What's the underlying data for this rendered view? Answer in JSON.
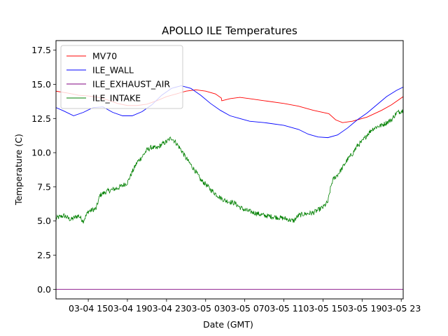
{
  "chart_data": {
    "type": "line",
    "title": "APOLLO ILE Temperatures",
    "xlabel": "Date (GMT)",
    "ylabel": "Temperature (C)",
    "x_unit": "hours since 03-04 00:00 GMT",
    "xlim": [
      11.7,
      47.2
    ],
    "ylim": [
      -0.7,
      18.2
    ],
    "x_ticks": [
      {
        "value": 15,
        "label": "03-04 15"
      },
      {
        "value": 19,
        "label": "03-04 19"
      },
      {
        "value": 23,
        "label": "03-04 23"
      },
      {
        "value": 27,
        "label": "03-05 03"
      },
      {
        "value": 31,
        "label": "03-05 07"
      },
      {
        "value": 35,
        "label": "03-05 11"
      },
      {
        "value": 39,
        "label": "03-05 15"
      },
      {
        "value": 43,
        "label": "03-05 19"
      },
      {
        "value": 47,
        "label": "03-05 23"
      }
    ],
    "y_ticks": [
      {
        "value": 0.0,
        "label": "0.0"
      },
      {
        "value": 2.5,
        "label": "2.5"
      },
      {
        "value": 5.0,
        "label": "5.0"
      },
      {
        "value": 7.5,
        "label": "7.5"
      },
      {
        "value": 10.0,
        "label": "10.0"
      },
      {
        "value": 12.5,
        "label": "12.5"
      },
      {
        "value": 15.0,
        "label": "15.0"
      },
      {
        "value": 17.5,
        "label": "17.5"
      }
    ],
    "legend_position": "top-left",
    "series": [
      {
        "name": "MV70",
        "color": "#ff0000",
        "noise": 0.0,
        "points": [
          [
            11.7,
            14.5
          ],
          [
            13.0,
            14.35
          ],
          [
            14.0,
            14.2
          ],
          [
            15.0,
            14.15
          ],
          [
            16.0,
            14.05
          ],
          [
            17.0,
            13.85
          ],
          [
            18.0,
            13.6
          ],
          [
            19.0,
            13.45
          ],
          [
            20.0,
            13.45
          ],
          [
            21.0,
            13.55
          ],
          [
            22.0,
            13.8
          ],
          [
            23.0,
            14.1
          ],
          [
            24.0,
            14.3
          ],
          [
            25.0,
            14.5
          ],
          [
            26.0,
            14.6
          ],
          [
            27.0,
            14.5
          ],
          [
            28.0,
            14.3
          ],
          [
            28.6,
            14.0
          ],
          [
            28.65,
            13.8
          ],
          [
            29.5,
            13.95
          ],
          [
            30.5,
            14.05
          ],
          [
            31.5,
            13.95
          ],
          [
            33.0,
            13.8
          ],
          [
            35.0,
            13.6
          ],
          [
            36.5,
            13.4
          ],
          [
            38.0,
            13.1
          ],
          [
            39.6,
            12.85
          ],
          [
            40.3,
            12.4
          ],
          [
            41.0,
            12.2
          ],
          [
            42.0,
            12.3
          ],
          [
            43.5,
            12.6
          ],
          [
            45.0,
            13.1
          ],
          [
            46.0,
            13.5
          ],
          [
            47.2,
            14.1
          ]
        ]
      },
      {
        "name": "ILE_WALL",
        "color": "#0000ff",
        "noise": 0.0,
        "points": [
          [
            11.7,
            13.3
          ],
          [
            12.5,
            13.05
          ],
          [
            13.5,
            12.7
          ],
          [
            14.5,
            12.95
          ],
          [
            15.5,
            13.3
          ],
          [
            16.5,
            13.35
          ],
          [
            17.5,
            12.95
          ],
          [
            18.5,
            12.7
          ],
          [
            19.5,
            12.7
          ],
          [
            20.5,
            13.0
          ],
          [
            21.5,
            13.5
          ],
          [
            22.5,
            14.2
          ],
          [
            23.5,
            14.7
          ],
          [
            24.5,
            14.9
          ],
          [
            25.5,
            14.7
          ],
          [
            26.5,
            14.2
          ],
          [
            27.5,
            13.6
          ],
          [
            28.5,
            13.1
          ],
          [
            29.5,
            12.7
          ],
          [
            30.5,
            12.5
          ],
          [
            31.5,
            12.3
          ],
          [
            33.0,
            12.2
          ],
          [
            35.0,
            12.0
          ],
          [
            36.5,
            11.7
          ],
          [
            37.5,
            11.35
          ],
          [
            38.5,
            11.15
          ],
          [
            39.5,
            11.1
          ],
          [
            40.5,
            11.3
          ],
          [
            41.5,
            11.8
          ],
          [
            42.5,
            12.4
          ],
          [
            43.5,
            12.9
          ],
          [
            44.5,
            13.5
          ],
          [
            45.5,
            14.1
          ],
          [
            46.5,
            14.55
          ],
          [
            47.2,
            14.8
          ]
        ]
      },
      {
        "name": "ILE_EXHAUST_AIR",
        "color": "#800080",
        "noise": 0.0,
        "points": [
          [
            11.7,
            0.0
          ],
          [
            47.2,
            0.0
          ]
        ]
      },
      {
        "name": "ILE_INTAKE",
        "color": "#008000",
        "noise": 0.18,
        "points": [
          [
            11.7,
            5.2
          ],
          [
            12.5,
            5.4
          ],
          [
            13.2,
            5.1
          ],
          [
            14.0,
            5.4
          ],
          [
            14.5,
            5.0
          ],
          [
            15.0,
            5.7
          ],
          [
            15.8,
            5.9
          ],
          [
            16.2,
            6.9
          ],
          [
            17.0,
            7.2
          ],
          [
            18.0,
            7.4
          ],
          [
            19.0,
            7.8
          ],
          [
            19.5,
            8.6
          ],
          [
            20.0,
            9.3
          ],
          [
            20.5,
            9.7
          ],
          [
            21.0,
            10.2
          ],
          [
            21.5,
            10.4
          ],
          [
            22.0,
            10.3
          ],
          [
            22.5,
            10.6
          ],
          [
            23.0,
            10.8
          ],
          [
            23.5,
            11.1
          ],
          [
            24.0,
            10.7
          ],
          [
            24.5,
            10.2
          ],
          [
            25.0,
            9.6
          ],
          [
            25.5,
            9.1
          ],
          [
            26.0,
            8.6
          ],
          [
            26.5,
            8.0
          ],
          [
            27.0,
            7.7
          ],
          [
            27.5,
            7.3
          ],
          [
            28.0,
            7.0
          ],
          [
            28.5,
            6.7
          ],
          [
            29.0,
            6.5
          ],
          [
            29.5,
            6.4
          ],
          [
            30.0,
            6.3
          ],
          [
            30.5,
            6.0
          ],
          [
            31.0,
            5.8
          ],
          [
            32.0,
            5.6
          ],
          [
            33.0,
            5.4
          ],
          [
            34.0,
            5.3
          ],
          [
            35.0,
            5.2
          ],
          [
            36.0,
            5.0
          ],
          [
            36.5,
            5.4
          ],
          [
            37.0,
            5.5
          ],
          [
            38.0,
            5.6
          ],
          [
            38.5,
            5.8
          ],
          [
            39.0,
            6.0
          ],
          [
            39.5,
            6.4
          ],
          [
            39.8,
            7.5
          ],
          [
            40.0,
            8.0
          ],
          [
            40.5,
            8.4
          ],
          [
            41.0,
            8.9
          ],
          [
            41.5,
            9.5
          ],
          [
            42.0,
            9.9
          ],
          [
            42.5,
            10.5
          ],
          [
            43.0,
            10.8
          ],
          [
            43.5,
            11.3
          ],
          [
            44.0,
            11.7
          ],
          [
            44.5,
            11.9
          ],
          [
            45.0,
            12.0
          ],
          [
            45.5,
            12.2
          ],
          [
            46.0,
            12.4
          ],
          [
            46.5,
            12.9
          ],
          [
            47.2,
            13.1
          ]
        ]
      }
    ]
  }
}
